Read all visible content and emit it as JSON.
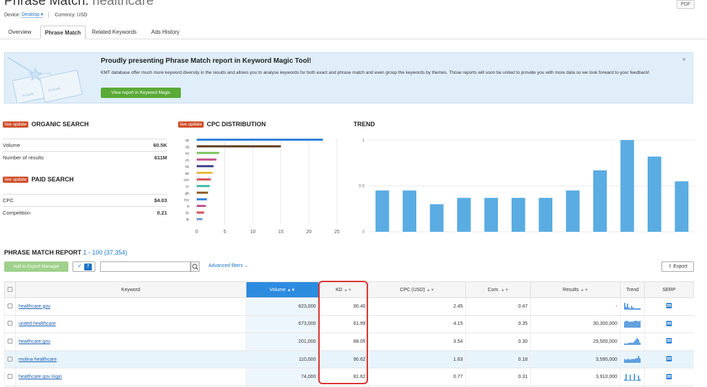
{
  "header": {
    "title_prefix": "Phrase Match:",
    "title_keyword": "healthcare",
    "pdf_label": "PDF",
    "device_label": "Device:",
    "device_value": "Desktop",
    "currency_label": "Currency: USD"
  },
  "tabs": [
    {
      "label": "Overview"
    },
    {
      "label": "Phrase Match",
      "active": true
    },
    {
      "label": "Related Keywords"
    },
    {
      "label": "Ads History"
    }
  ],
  "banner": {
    "title": "Proudly presenting Phrase Match report in Keyword Magic Tool!",
    "text": "KMT database offer much more keyword diversity in the results and allows you to analyse keywords for both exact and phrase match and even group the keywords by themes. Those reports will soon be united to provide you with more data so we look forward to your feedback!",
    "button": "View report in Keyword Magic",
    "close": "×",
    "illustration_labels": [
      "Include",
      "Exclude"
    ]
  },
  "organic": {
    "badge": "live update",
    "title": "ORGANIC SEARCH",
    "rows": [
      {
        "label": "Volume",
        "value": "60.5K"
      },
      {
        "label": "Number of results",
        "value": "611M"
      }
    ]
  },
  "paid": {
    "badge": "live update",
    "title": "PAID SEARCH",
    "rows": [
      {
        "label": "CPC",
        "value": "$4.03"
      },
      {
        "label": "Competition",
        "value": "0.21"
      }
    ]
  },
  "cpc_chart": {
    "badge": "live update",
    "title": "CPC DISTRIBUTION"
  },
  "trend_chart": {
    "title": "TREND"
  },
  "chart_data": [
    {
      "type": "bar",
      "orientation": "horizontal",
      "categories": [
        "uk",
        "sg",
        "nz",
        "ch",
        "hk",
        "ae",
        "om",
        "cc",
        "gh",
        "my",
        "tt",
        "br",
        "lk"
      ],
      "values": [
        22.5,
        15,
        4,
        3.5,
        3,
        2.8,
        2.5,
        2.3,
        2,
        1.8,
        1.6,
        1.3,
        1
      ],
      "colors": [
        "#2d7fd8",
        "#5a3a1c",
        "#7cc35a",
        "#c0518f",
        "#3a3a8a",
        "#e6b93a",
        "#d05050",
        "#3bb8a6",
        "#8a5a2a",
        "#2d7fd8",
        "#c0518f",
        "#d05050",
        "#6a9ad8"
      ],
      "xlim": [
        0,
        25
      ],
      "xticks": [
        0,
        5,
        10,
        15,
        20,
        25
      ],
      "grid": true
    },
    {
      "type": "bar",
      "values": [
        0.45,
        0.45,
        0.3,
        0.37,
        0.37,
        0.37,
        0.37,
        0.45,
        0.67,
        1.0,
        0.82,
        0.55
      ],
      "ylim": [
        0,
        1
      ],
      "yticks": [
        "0",
        "0.5",
        "1"
      ],
      "color": "#5aace2",
      "grid": true
    }
  ],
  "report": {
    "title": "PHRASE MATCH REPORT",
    "range": "1 - 100 (37,354)",
    "add_button": "Add to Export Manager",
    "selected_count": "7",
    "filter_placeholder": "",
    "advanced": "Advanced filters",
    "export": "Export",
    "columns": [
      "Keyword",
      "Volume",
      "KD",
      "CPC (USD)",
      "Com.",
      "Results",
      "Trend",
      "SERP"
    ],
    "rows": [
      {
        "keyword": "healthcare gov",
        "volume": "823,000",
        "kd": "90.40",
        "cpc": "2.45",
        "com": "0.47",
        "results": "-",
        "trend": [
          0.9,
          0.4,
          0.8,
          0.3,
          0.2,
          0.5,
          0.3,
          0.2,
          0.2,
          0.2,
          0.2,
          0.2
        ]
      },
      {
        "keyword": "united healthcare",
        "volume": "673,000",
        "kd": "61.99",
        "cpc": "4.15",
        "com": "0.35",
        "results": "30,300,000",
        "trend": [
          0.8,
          0.9,
          0.9,
          0.8,
          0.8,
          0.8,
          0.8,
          0.9,
          0.9,
          0.9,
          0.8,
          0.9
        ]
      },
      {
        "keyword": "healthcare.gov",
        "volume": "201,000",
        "kd": "88.05",
        "cpc": "3.54",
        "com": "0.30",
        "results": "29,500,000",
        "trend": [
          0.2,
          0.2,
          0.2,
          0.3,
          0.3,
          0.3,
          0.3,
          0.5,
          0.7,
          0.9,
          0.7,
          0.3
        ]
      },
      {
        "keyword": "molina healthcare",
        "volume": "110,000",
        "kd": "90.62",
        "cpc": "1.63",
        "com": "0.18",
        "results": "3,590,000",
        "trend": [
          0.5,
          0.4,
          0.5,
          0.5,
          0.4,
          0.5,
          0.5,
          0.5,
          0.6,
          0.6,
          0.9,
          0.6
        ]
      },
      {
        "keyword": "healthcare gov login",
        "volume": "74,000",
        "kd": "81.62",
        "cpc": "0.77",
        "com": "0.31",
        "results": "3,910,000",
        "trend": [
          0.2,
          0.9,
          0.1,
          0.1,
          0.8,
          0.1,
          0.1,
          0.9,
          0.1,
          0.1,
          0.7,
          0.2
        ]
      }
    ]
  }
}
